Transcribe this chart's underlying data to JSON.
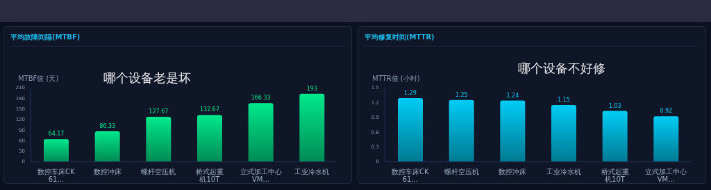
{
  "chart_data": [
    {
      "type": "bar",
      "title": "平均故障间隔(MTBF)",
      "ylabel": "MTBF值 (天)",
      "annotations": [
        "哪个设备老是坏"
      ],
      "categories": [
        "数控车床CK61...",
        "数控冲床",
        "螺杆空压机",
        "桥式起重机10T",
        "立式加工中心VM...",
        "工业冷水机"
      ],
      "values": [
        64.17,
        86.33,
        127.67,
        132.67,
        166.33,
        193
      ],
      "color": "#00e88c",
      "ylim": [
        0,
        210
      ],
      "yticks": [
        0,
        30,
        60,
        90,
        120,
        150,
        180,
        210
      ],
      "data_labels": true
    },
    {
      "type": "bar",
      "title": "平均修复时间(MTTR)",
      "ylabel": "MTTR值 (小时)",
      "annotations": [
        "哪个设备不好修"
      ],
      "categories": [
        "数控车床CK61...",
        "螺杆空压机",
        "数控冲床",
        "工业冷水机",
        "桥式起重机10T",
        "立式加工中心VM..."
      ],
      "values": [
        1.29,
        1.25,
        1.24,
        1.15,
        1.03,
        0.92
      ],
      "color": "#00ccf5",
      "ylim": [
        0,
        1.5
      ],
      "yticks": [
        0,
        0.3,
        0.6,
        0.9,
        1.2,
        1.5
      ],
      "data_labels": true
    }
  ]
}
